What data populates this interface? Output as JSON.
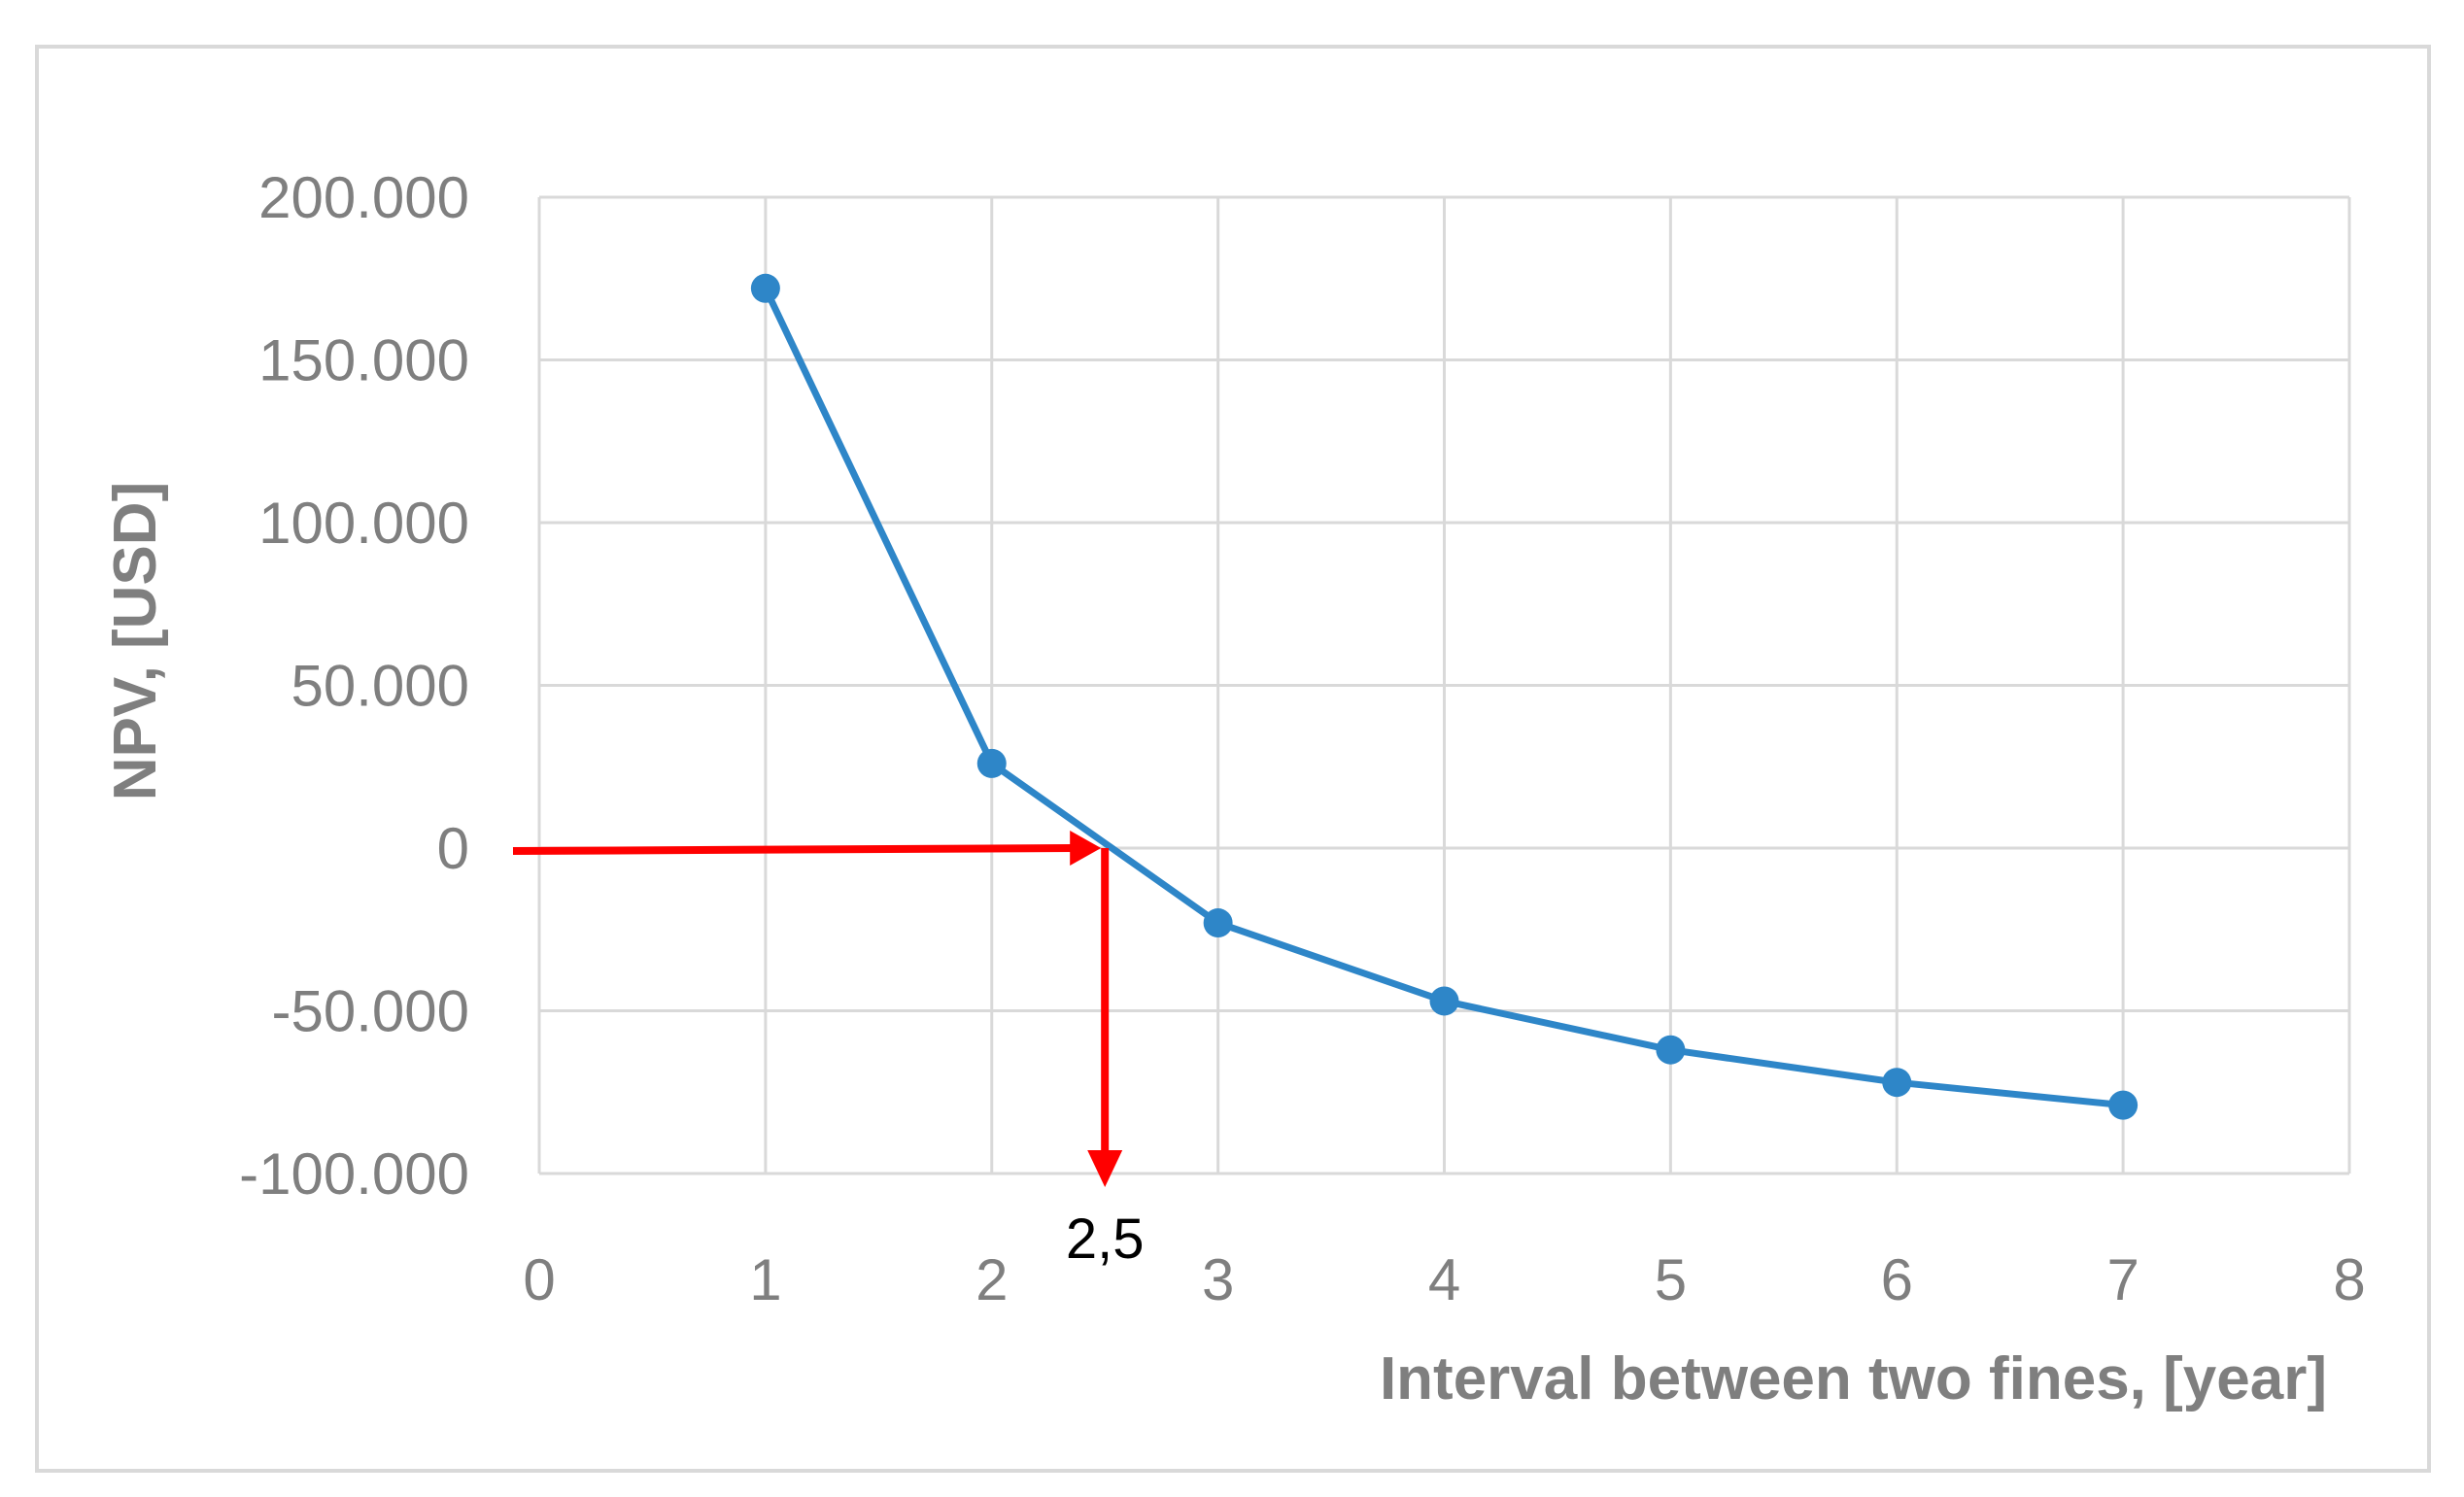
{
  "chart_data": {
    "type": "line",
    "xlabel": "Interval between two fines, [year]",
    "ylabel": "NPV, [USD]",
    "xlim": [
      0,
      8
    ],
    "ylim": [
      -100000,
      200000
    ],
    "x_ticks": [
      0,
      1,
      2,
      3,
      4,
      5,
      6,
      7,
      8
    ],
    "x_tick_labels": [
      "0",
      "1",
      "2",
      "3",
      "4",
      "5",
      "6",
      "7",
      "8"
    ],
    "y_ticks": [
      200000,
      150000,
      100000,
      50000,
      0,
      -50000,
      -100000
    ],
    "y_tick_labels": [
      "200.000",
      "150.000",
      "100.000",
      "50.000",
      "0",
      "-50.000",
      "-100.000"
    ],
    "grid": true,
    "legend": "none",
    "series": [
      {
        "x": [
          1,
          2,
          3,
          4,
          5,
          6,
          7
        ],
        "y": [
          172000,
          26000,
          -23000,
          -47000,
          -62000,
          -72000,
          -79000
        ],
        "color": "#2e86c8",
        "marker": "circle"
      }
    ],
    "annotation": {
      "label": "2,5",
      "x": 2.5,
      "y": 0,
      "color": "#ff0000"
    }
  }
}
